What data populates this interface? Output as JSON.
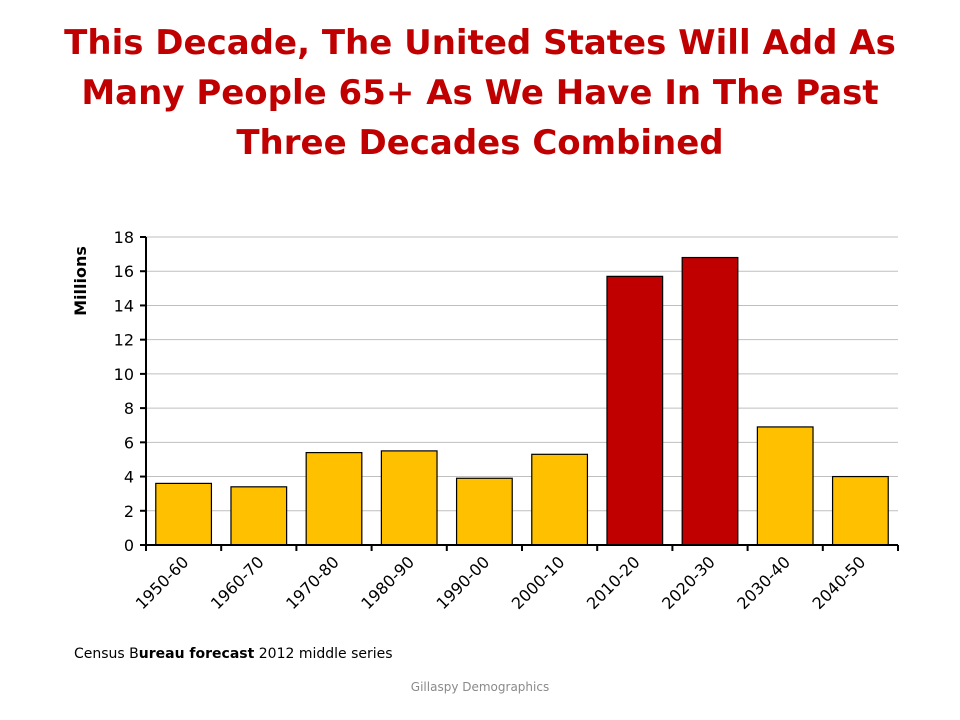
{
  "slide": {
    "title": "This Decade, The United States Will Add As Many People 65+ As We Have In The Past Three Decades Combined",
    "source_note": {
      "part1": "Census B",
      "part2": "ureau forecast",
      "part3": " 2012 middle series"
    },
    "footer": "Gillaspy Demographics"
  },
  "colors": {
    "title": "#c00000",
    "bar_default": "#ffc000",
    "bar_highlight": "#c00000",
    "bar_outline": "#000000",
    "grid": "#bfbfbf"
  },
  "chart_data": {
    "type": "bar",
    "title": "",
    "xlabel": "",
    "ylabel": "Millions",
    "categories": [
      "1950-60",
      "1960-70",
      "1970-80",
      "1980-90",
      "1990-00",
      "2000-10",
      "2010-20",
      "2020-30",
      "2030-40",
      "2040-50"
    ],
    "values": [
      3.6,
      3.4,
      5.4,
      5.5,
      3.9,
      5.3,
      15.7,
      16.8,
      6.9,
      4.0
    ],
    "highlighted_categories": [
      "2010-20",
      "2020-30"
    ],
    "ylim": [
      0,
      18
    ],
    "yticks": [
      0,
      2,
      4,
      6,
      8,
      10,
      12,
      14,
      16,
      18
    ],
    "grid": true,
    "legend": "none"
  }
}
